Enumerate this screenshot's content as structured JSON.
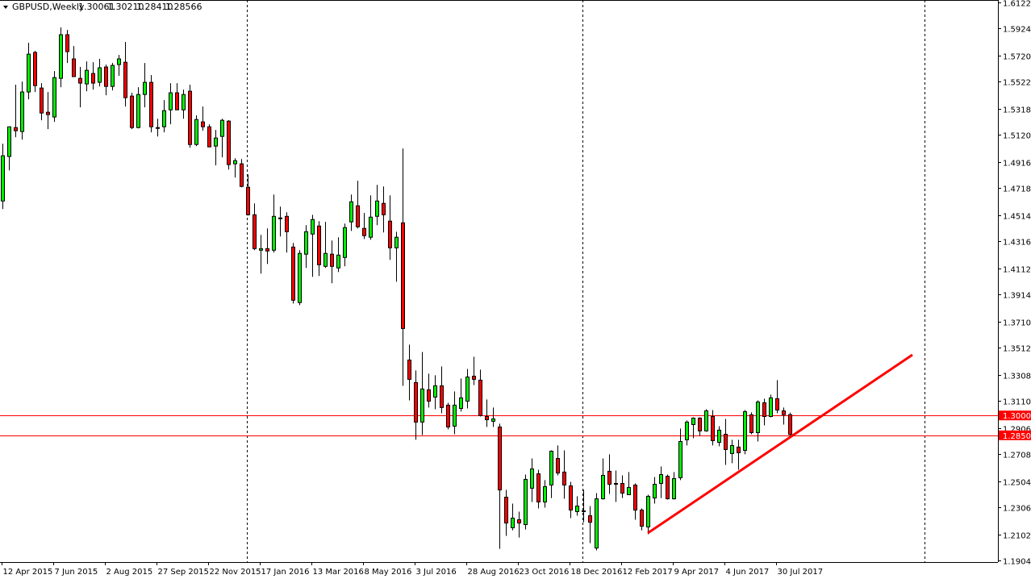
{
  "header": {
    "symbol": "GBPUSD,Weekly",
    "open": "1.30061",
    "high": "1.30210",
    "low": "1.28410",
    "close": "1.28566",
    "menu_icon": "triangle-down-icon"
  },
  "colors": {
    "bull": "#00ee00",
    "bear": "#ff0000",
    "outline": "#000000",
    "level_line": "#ff0000",
    "trendline": "#ff0000",
    "background": "#ffffff"
  },
  "chart_data": {
    "type": "candlestick",
    "symbol": "GBPUSD",
    "timeframe": "Weekly",
    "ylim": [
      1.1904,
      1.6122
    ],
    "grid": false,
    "y_ticks": [
      "1.61220",
      "1.59240",
      "1.57200",
      "1.55220",
      "1.53180",
      "1.51200",
      "1.49160",
      "1.47180",
      "1.45140",
      "1.43160",
      "1.41120",
      "1.39140",
      "1.37100",
      "1.35120",
      "1.33080",
      "1.31100",
      "1.29060",
      "1.27080",
      "1.25040",
      "1.23060",
      "1.21020",
      "1.19040"
    ],
    "x_ticks": [
      "12 Apr 2015",
      "7 Jun 2015",
      "2 Aug 2015",
      "27 Sep 2015",
      "22 Nov 2015",
      "17 Jan 2016",
      "13 Mar 2016",
      "8 May 2016",
      "3 Jul 2016",
      "28 Aug 2016",
      "23 Oct 2016",
      "18 Dec 2016",
      "12 Feb 2017",
      "9 Apr 2017",
      "4 Jun 2017",
      "30 Jul 2017"
    ],
    "ohlc_fields": [
      "open",
      "high",
      "low",
      "close"
    ],
    "candles": [
      [
        1.4621,
        1.5054,
        1.456,
        1.4963
      ],
      [
        1.4957,
        1.5182,
        1.4853,
        1.5182
      ],
      [
        1.5176,
        1.55,
        1.5103,
        1.5152
      ],
      [
        1.5146,
        1.5524,
        1.5085,
        1.5445
      ],
      [
        1.5445,
        1.5817,
        1.539,
        1.5731
      ],
      [
        1.5744,
        1.5756,
        1.5445,
        1.5493
      ],
      [
        1.5475,
        1.5512,
        1.5231,
        1.5286
      ],
      [
        1.5292,
        1.5445,
        1.5164,
        1.5274
      ],
      [
        1.5256,
        1.5603,
        1.5219,
        1.5554
      ],
      [
        1.5548,
        1.5933,
        1.5481,
        1.5878
      ],
      [
        1.5878,
        1.5914,
        1.5664,
        1.575
      ],
      [
        1.5695,
        1.5792,
        1.5561,
        1.5561
      ],
      [
        1.5548,
        1.5634,
        1.5329,
        1.5512
      ],
      [
        1.5506,
        1.5676,
        1.5451,
        1.5609
      ],
      [
        1.5585,
        1.567,
        1.5463,
        1.5512
      ],
      [
        1.5518,
        1.5695,
        1.5487,
        1.5628
      ],
      [
        1.5634,
        1.5652,
        1.542,
        1.5487
      ],
      [
        1.5487,
        1.5664,
        1.5457,
        1.5646
      ],
      [
        1.5652,
        1.5725,
        1.5567,
        1.5695
      ],
      [
        1.567,
        1.5823,
        1.5335,
        1.5402
      ],
      [
        1.5414,
        1.5439,
        1.5164,
        1.5176
      ],
      [
        1.5176,
        1.5481,
        1.517,
        1.5426
      ],
      [
        1.5426,
        1.5664,
        1.5329,
        1.5518
      ],
      [
        1.5518,
        1.5573,
        1.514,
        1.5182
      ],
      [
        1.5176,
        1.5243,
        1.5109,
        1.517
      ],
      [
        1.5182,
        1.5384,
        1.514,
        1.5304
      ],
      [
        1.531,
        1.5512,
        1.5201,
        1.5439
      ],
      [
        1.5439,
        1.5512,
        1.531,
        1.531
      ],
      [
        1.531,
        1.5463,
        1.5243,
        1.5426
      ],
      [
        1.5451,
        1.55,
        1.5024,
        1.5048
      ],
      [
        1.5048,
        1.5268,
        1.5036,
        1.5237
      ],
      [
        1.5219,
        1.5335,
        1.5152,
        1.5182
      ],
      [
        1.5182,
        1.5201,
        1.503,
        1.503
      ],
      [
        1.5036,
        1.5158,
        1.489,
        1.5097
      ],
      [
        1.5109,
        1.5243,
        1.4951,
        1.5231
      ],
      [
        1.5225,
        1.5231,
        1.4859,
        1.4896
      ],
      [
        1.4902,
        1.4944,
        1.4798,
        1.4926
      ],
      [
        1.4902,
        1.4938,
        1.4725,
        1.4731
      ],
      [
        1.4725,
        1.4822,
        1.4511,
        1.4517
      ],
      [
        1.4517,
        1.4603,
        1.4249,
        1.4261
      ],
      [
        1.4249,
        1.4365,
        1.4072,
        1.4261
      ],
      [
        1.4261,
        1.4414,
        1.4145,
        1.4243
      ],
      [
        1.4249,
        1.467,
        1.4231,
        1.4505
      ],
      [
        1.4493,
        1.4578,
        1.4353,
        1.449
      ],
      [
        1.4505,
        1.4536,
        1.4231,
        1.4389
      ],
      [
        1.4273,
        1.4304,
        1.3846,
        1.3871
      ],
      [
        1.3853,
        1.4249,
        1.3834,
        1.4225
      ],
      [
        1.4219,
        1.4438,
        1.4115,
        1.4389
      ],
      [
        1.4371,
        1.4517,
        1.4048,
        1.4481
      ],
      [
        1.4432,
        1.4469,
        1.4054,
        1.4139
      ],
      [
        1.4127,
        1.4463,
        1.4115,
        1.4225
      ],
      [
        1.4219,
        1.4322,
        1.3999,
        1.4127
      ],
      [
        1.4115,
        1.4347,
        1.4084,
        1.4212
      ],
      [
        1.4194,
        1.445,
        1.4127,
        1.442
      ],
      [
        1.4463,
        1.467,
        1.4395,
        1.4615
      ],
      [
        1.4585,
        1.4774,
        1.4414,
        1.4426
      ],
      [
        1.4414,
        1.453,
        1.4334,
        1.4359
      ],
      [
        1.4347,
        1.4664,
        1.4328,
        1.4499
      ],
      [
        1.4505,
        1.4743,
        1.4438,
        1.4621
      ],
      [
        1.4603,
        1.4731,
        1.4383,
        1.4517
      ],
      [
        1.4469,
        1.4664,
        1.4176,
        1.4267
      ],
      [
        1.4267,
        1.4389,
        1.4011,
        1.4347
      ],
      [
        1.4456,
        1.5018,
        1.3224,
        1.3657
      ],
      [
        1.3419,
        1.3535,
        1.3114,
        1.3273
      ],
      [
        1.3249,
        1.334,
        1.2816,
        1.295
      ],
      [
        1.295,
        1.348,
        1.2852,
        1.32
      ],
      [
        1.3194,
        1.3316,
        1.306,
        1.3108
      ],
      [
        1.3139,
        1.3304,
        1.3047,
        1.3224
      ],
      [
        1.3224,
        1.3371,
        1.3017,
        1.306
      ],
      [
        1.3078,
        1.3096,
        1.2895,
        1.2913
      ],
      [
        1.2919,
        1.3182,
        1.2858,
        1.3078
      ],
      [
        1.3053,
        1.3279,
        1.3029,
        1.3133
      ],
      [
        1.3108,
        1.3352,
        1.3053,
        1.3291
      ],
      [
        1.3297,
        1.3444,
        1.323,
        1.3273
      ],
      [
        1.3267,
        1.3346,
        1.2992,
        1.2999
      ],
      [
        1.2992,
        1.3121,
        1.2913,
        1.2968
      ],
      [
        1.2956,
        1.306,
        1.2913,
        1.2974
      ],
      [
        1.2913,
        1.2938,
        1.1992,
        1.2437
      ],
      [
        1.2382,
        1.2437,
        1.209,
        1.2187
      ],
      [
        1.2151,
        1.2334,
        1.2132,
        1.2224
      ],
      [
        1.2212,
        1.2273,
        1.2077,
        1.2187
      ],
      [
        1.2175,
        1.2553,
        1.2138,
        1.2517
      ],
      [
        1.245,
        1.2675,
        1.2346,
        1.2596
      ],
      [
        1.2559,
        1.259,
        1.2297,
        1.2346
      ],
      [
        1.2346,
        1.2511,
        1.2303,
        1.2462
      ],
      [
        1.2474,
        1.2736,
        1.2376,
        1.273
      ],
      [
        1.2675,
        1.2773,
        1.2547,
        1.2565
      ],
      [
        1.2572,
        1.2736,
        1.237,
        1.2474
      ],
      [
        1.2468,
        1.2498,
        1.2224,
        1.2285
      ],
      [
        1.2273,
        1.2389,
        1.2242,
        1.2315
      ],
      [
        1.2279,
        1.2437,
        1.2193,
        1.2276
      ],
      [
        1.2242,
        1.2315,
        1.2035,
        1.2193
      ],
      [
        1.1998,
        1.2413,
        1.198,
        1.237
      ],
      [
        1.237,
        1.2675,
        1.2364,
        1.2547
      ],
      [
        1.2578,
        1.2706,
        1.2407,
        1.248
      ],
      [
        1.2486,
        1.2584,
        1.2346,
        1.2483
      ],
      [
        1.2486,
        1.2547,
        1.2376,
        1.2413
      ],
      [
        1.2401,
        1.2572,
        1.2401,
        1.2456
      ],
      [
        1.2474,
        1.2486,
        1.2212,
        1.2285
      ],
      [
        1.2285,
        1.2297,
        1.2132,
        1.2163
      ],
      [
        1.2157,
        1.2401,
        1.2102,
        1.2389
      ],
      [
        1.2376,
        1.2535,
        1.2334,
        1.248
      ],
      [
        1.2486,
        1.2614,
        1.2376,
        1.2553
      ],
      [
        1.2541,
        1.2553,
        1.2364,
        1.237
      ],
      [
        1.237,
        1.2572,
        1.2364,
        1.2523
      ],
      [
        1.2529,
        1.2901,
        1.2511,
        1.2803
      ],
      [
        1.2816,
        1.2962,
        1.2773,
        1.295
      ],
      [
        1.2931,
        1.2986,
        1.2828,
        1.298
      ],
      [
        1.298,
        1.2986,
        1.2846,
        1.2883
      ],
      [
        1.2883,
        1.3047,
        1.2877,
        1.3035
      ],
      [
        1.2992,
        1.3041,
        1.2773,
        1.2809
      ],
      [
        1.2797,
        1.2919,
        1.2767,
        1.2889
      ],
      [
        1.2858,
        1.2974,
        1.2626,
        1.2742
      ],
      [
        1.2712,
        1.2816,
        1.2639,
        1.2773
      ],
      [
        1.2761,
        1.2816,
        1.259,
        1.2718
      ],
      [
        1.2736,
        1.3041,
        1.2706,
        1.3029
      ],
      [
        1.3005,
        1.3023,
        1.2858,
        1.287
      ],
      [
        1.287,
        1.3114,
        1.2803,
        1.3102
      ],
      [
        1.3096,
        1.3127,
        1.2925,
        1.2992
      ],
      [
        1.2992,
        1.3157,
        1.2986,
        1.3133
      ],
      [
        1.3127,
        1.3267,
        1.3017,
        1.3041
      ],
      [
        1.3035,
        1.306,
        1.2931,
        1.3006
      ],
      [
        1.30061,
        1.3021,
        1.2841,
        1.28566
      ]
    ],
    "levels": [
      {
        "price": 1.3,
        "label": "1.30000"
      },
      {
        "price": 1.285,
        "label": "1.28500"
      }
    ],
    "trendline": {
      "from_bar": 100,
      "from_price": 1.2111,
      "to_bar": 141,
      "to_price": 1.3458
    }
  }
}
